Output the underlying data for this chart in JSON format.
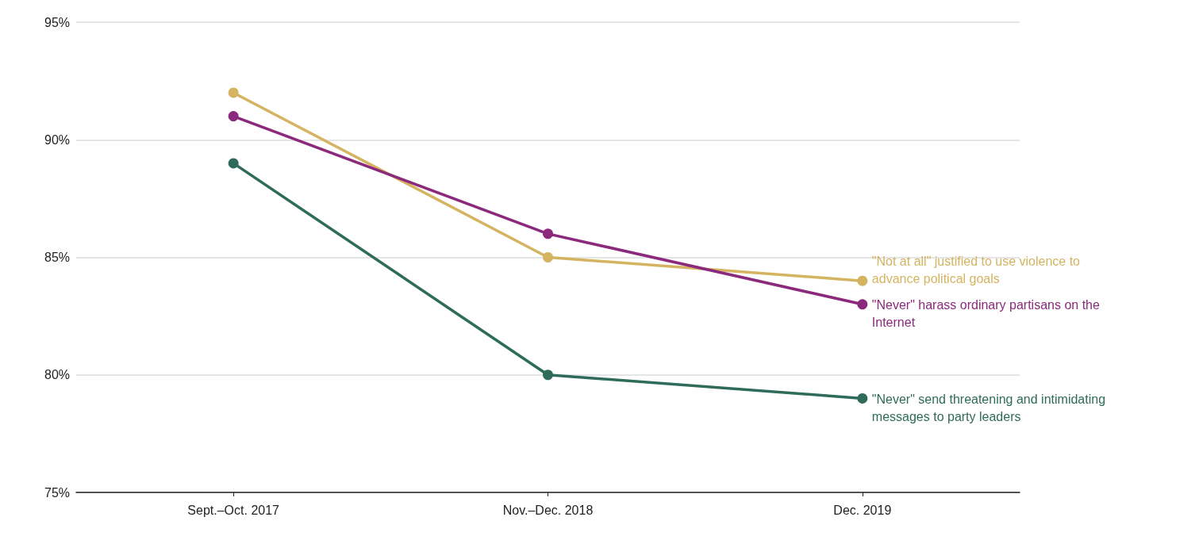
{
  "chart_data": {
    "type": "line",
    "categories": [
      "Sept.–Oct. 2017",
      "Nov.–Dec. 2018",
      "Dec. 2019"
    ],
    "series": [
      {
        "name": "\"Not at all\" justified to use violence to advance political goals",
        "color": "#d4b461",
        "values": [
          92,
          85,
          84
        ]
      },
      {
        "name": "\"Never\" harass ordinary partisans on the Internet",
        "color": "#8b2a7c",
        "values": [
          91,
          86,
          83
        ]
      },
      {
        "name": "\"Never\" send threatening and intimidating messages to party leaders",
        "color": "#2f6b5a",
        "values": [
          89,
          80,
          79
        ]
      }
    ],
    "ylim": [
      75,
      95
    ],
    "yticks": [
      {
        "value": 75,
        "label": "75%"
      },
      {
        "value": 80,
        "label": "80%"
      },
      {
        "value": 85,
        "label": "85%"
      },
      {
        "value": 90,
        "label": "90%"
      },
      {
        "value": 95,
        "label": "95%"
      }
    ],
    "grid": "y",
    "legend": false,
    "marker": "circle",
    "line_style": "solid"
  }
}
